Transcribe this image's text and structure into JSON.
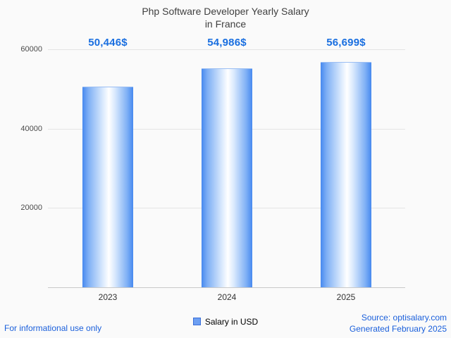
{
  "title": {
    "line1": "Php Software Developer Yearly Salary",
    "line2": "in France"
  },
  "chart_data": {
    "type": "bar",
    "title": "Php Software Developer Yearly Salary in France",
    "categories": [
      "2023",
      "2024",
      "2025"
    ],
    "values": [
      50446,
      54986,
      56699
    ],
    "value_labels": [
      "50,446$",
      "54,986$",
      "56,699$"
    ],
    "xlabel": "",
    "ylabel": "",
    "ylim": [
      0,
      60000
    ],
    "yticks": [
      20000,
      40000,
      60000
    ],
    "grid": true,
    "legend": {
      "position": "bottom",
      "label": "Salary in USD"
    },
    "bar_color": "#4789ef",
    "value_label_color": "#1a6fe0"
  },
  "footer": {
    "left": "For informational use only",
    "source": "Source: optisalary.com",
    "generated": "Generated February 2025"
  }
}
